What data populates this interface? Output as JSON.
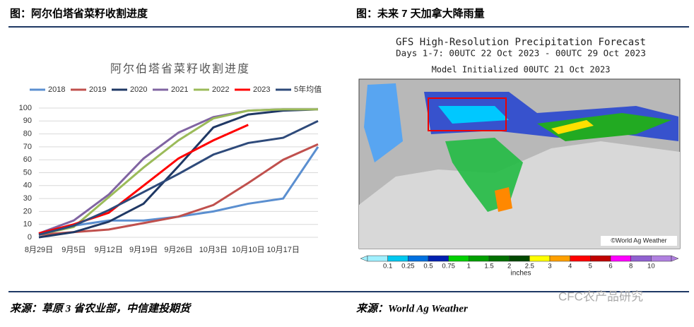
{
  "left": {
    "heading": "图：阿尔伯塔省菜籽收割进度",
    "source": "来源：草原 3 省农业部，中信建投期货"
  },
  "chart_data": {
    "type": "line",
    "title": "阿尔伯塔省菜籽收割进度",
    "categories": [
      "8月29日",
      "9月5日",
      "9月12日",
      "9月19日",
      "9月26日",
      "10月3日",
      "10月10日",
      "10月17日",
      null
    ],
    "series": [
      {
        "name": "2018",
        "color": "#5b8fd0",
        "values": [
          2,
          9,
          13,
          13,
          16,
          20,
          26,
          30,
          70
        ]
      },
      {
        "name": "2019",
        "color": "#c0504d",
        "values": [
          2,
          4,
          6,
          11,
          16,
          25,
          42,
          60,
          72
        ]
      },
      {
        "name": "2020",
        "color": "#1f3864",
        "values": [
          0,
          4,
          12,
          26,
          55,
          85,
          95,
          98,
          99
        ]
      },
      {
        "name": "2021",
        "color": "#8064a2",
        "values": [
          3,
          13,
          33,
          61,
          81,
          93,
          98,
          99,
          99
        ]
      },
      {
        "name": "2022",
        "color": "#9bbb59",
        "values": [
          2,
          8,
          31,
          54,
          75,
          92,
          98,
          99,
          99
        ]
      },
      {
        "name": "2023",
        "color": "#ff0000",
        "values": [
          3,
          10,
          19,
          40,
          61,
          75,
          87,
          null,
          null
        ]
      },
      {
        "name": "5年均值",
        "color": "#2e4a7a",
        "values": [
          2,
          9,
          21,
          35,
          49,
          64,
          73,
          77,
          90
        ]
      }
    ],
    "ylim": [
      0,
      100
    ],
    "yticks": [
      0,
      10,
      20,
      30,
      40,
      50,
      60,
      70,
      80,
      90,
      100
    ],
    "grid": true
  },
  "right": {
    "heading": "图：未来 7 天加拿大降雨量",
    "map_title": "GFS High-Resolution Precipitation Forecast",
    "map_days": "Days 1-7: 00UTC 22 Oct 2023 - 00UTC 29 Oct 2023",
    "map_init": "Model Initialized 00UTC 21 Oct 2023",
    "copyright": "©World Ag Weather",
    "colorbar_labels": [
      "0.1",
      "0.25",
      "0.5",
      "0.75",
      "1",
      "1.5",
      "2",
      "2.5",
      "3",
      "4",
      "5",
      "6",
      "8",
      "10"
    ],
    "colorbar_unit": "inches",
    "source": "来源：World Ag Weather",
    "watermark": "CFC农产品研究"
  }
}
